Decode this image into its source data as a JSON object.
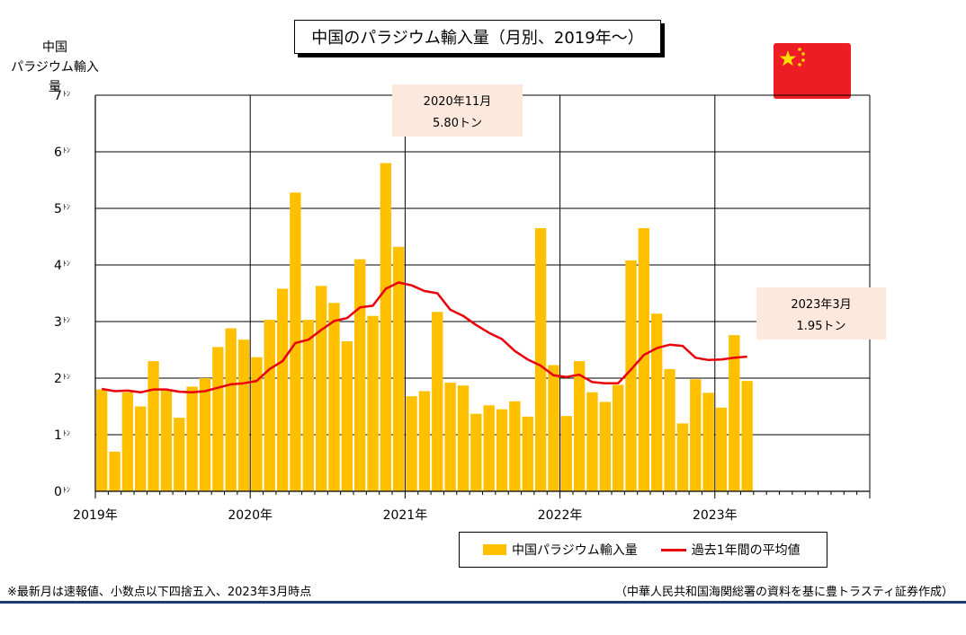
{
  "title": "中国のパラジウム輸入量（月別、2019年～）",
  "ylabel_line1": "中国",
  "ylabel_line2": "パラジウム輸入量",
  "callout_peak": {
    "line1": "2020年11月",
    "line2": "5.80トン"
  },
  "callout_latest": {
    "line1": "2023年3月",
    "line2": "1.95トン"
  },
  "legend": {
    "bar": "中国パラジウム輸入量",
    "line": "過去1年間の平均値"
  },
  "footnote_left": "※最新月は速報値、小数点以下四捨五入、2023年3月時点",
  "footnote_right": "（中華人民共和国海関総署の資料を基に豊トラスティ証券作成）",
  "colors": {
    "bar": "#ffc000",
    "line": "#e8000b",
    "callout_bg": "#fce8dc",
    "flag": "#ee1c25",
    "flag_star": "#ffde00"
  },
  "chart_data": {
    "type": "bar",
    "y_unit": "ﾄﾝ",
    "ylim": [
      0,
      7
    ],
    "y_ticks": [
      0,
      1,
      2,
      3,
      4,
      5,
      6,
      7
    ],
    "x_tick_labels": [
      "2019年",
      "2020年",
      "2021年",
      "2022年",
      "2023年"
    ],
    "months_on_axis": 60,
    "grid": true,
    "legend_position": "bottom-right",
    "categories": [
      "2019-01",
      "2019-02",
      "2019-03",
      "2019-04",
      "2019-05",
      "2019-06",
      "2019-07",
      "2019-08",
      "2019-09",
      "2019-10",
      "2019-11",
      "2019-12",
      "2020-01",
      "2020-02",
      "2020-03",
      "2020-04",
      "2020-05",
      "2020-06",
      "2020-07",
      "2020-08",
      "2020-09",
      "2020-10",
      "2020-11",
      "2020-12",
      "2021-01",
      "2021-02",
      "2021-03",
      "2021-04",
      "2021-05",
      "2021-06",
      "2021-07",
      "2021-08",
      "2021-09",
      "2021-10",
      "2021-11",
      "2021-12",
      "2022-01",
      "2022-02",
      "2022-03",
      "2022-04",
      "2022-05",
      "2022-06",
      "2022-07",
      "2022-08",
      "2022-09",
      "2022-10",
      "2022-11",
      "2022-12",
      "2023-01",
      "2023-02",
      "2023-03"
    ],
    "series": [
      {
        "name": "中国パラジウム輸入量",
        "type": "bar",
        "values": [
          1.8,
          0.7,
          1.75,
          1.5,
          2.3,
          1.8,
          1.3,
          1.85,
          2.0,
          2.55,
          2.88,
          2.68,
          2.37,
          3.03,
          3.58,
          5.28,
          3.03,
          3.63,
          3.33,
          2.65,
          4.1,
          3.1,
          5.8,
          4.32,
          1.68,
          1.77,
          3.17,
          1.92,
          1.87,
          1.37,
          1.52,
          1.45,
          1.59,
          1.32,
          4.65,
          2.23,
          1.33,
          2.3,
          1.75,
          1.58,
          1.88,
          4.08,
          4.65,
          3.14,
          2.16,
          1.2,
          1.98,
          1.74,
          1.48,
          2.76,
          1.95
        ]
      },
      {
        "name": "過去1年間の平均値",
        "type": "line",
        "values": [
          1.81,
          1.77,
          1.78,
          1.75,
          1.8,
          1.8,
          1.76,
          1.75,
          1.77,
          1.83,
          1.89,
          1.91,
          1.95,
          2.16,
          2.3,
          2.62,
          2.68,
          2.85,
          3.01,
          3.06,
          3.25,
          3.28,
          3.58,
          3.69,
          3.64,
          3.54,
          3.5,
          3.21,
          3.1,
          2.94,
          2.8,
          2.69,
          2.48,
          2.33,
          2.22,
          2.05,
          2.02,
          2.06,
          1.93,
          1.91,
          1.91,
          2.15,
          2.41,
          2.53,
          2.59,
          2.57,
          2.36,
          2.32,
          2.33,
          2.36,
          2.38
        ]
      }
    ]
  }
}
